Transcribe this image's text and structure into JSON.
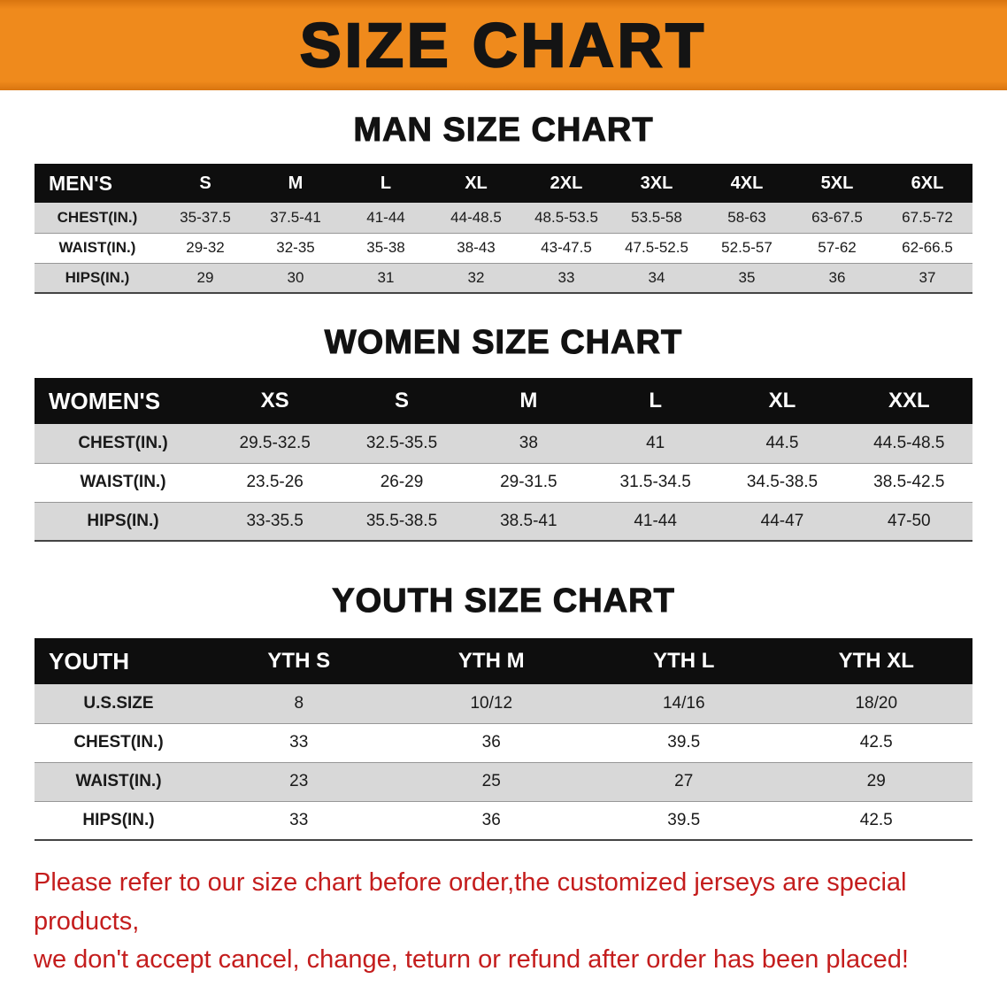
{
  "banner": {
    "title": "SIZE CHART",
    "bg_color": "#EF8A1C",
    "text_color": "#141414"
  },
  "sections": [
    {
      "title": "MAN SIZE CHART",
      "table": {
        "header": [
          "MEN'S",
          "S",
          "M",
          "L",
          "XL",
          "2XL",
          "3XL",
          "4XL",
          "5XL",
          "6XL"
        ],
        "rows": [
          [
            "CHEST(IN.)",
            "35-37.5",
            "37.5-41",
            "41-44",
            "44-48.5",
            "48.5-53.5",
            "53.5-58",
            "58-63",
            "63-67.5",
            "67.5-72"
          ],
          [
            "WAIST(IN.)",
            "29-32",
            "32-35",
            "35-38",
            "38-43",
            "43-47.5",
            "47.5-52.5",
            "52.5-57",
            "57-62",
            "62-66.5"
          ],
          [
            "HIPS(IN.)",
            "29",
            "30",
            "31",
            "32",
            "33",
            "34",
            "35",
            "36",
            "37"
          ]
        ]
      }
    },
    {
      "title": "WOMEN SIZE CHART",
      "table": {
        "header": [
          "WOMEN'S",
          "XS",
          "S",
          "M",
          "L",
          "XL",
          "XXL"
        ],
        "rows": [
          [
            "CHEST(IN.)",
            "29.5-32.5",
            "32.5-35.5",
            "38",
            "41",
            "44.5",
            "44.5-48.5"
          ],
          [
            "WAIST(IN.)",
            "23.5-26",
            "26-29",
            "29-31.5",
            "31.5-34.5",
            "34.5-38.5",
            "38.5-42.5"
          ],
          [
            "HIPS(IN.)",
            "33-35.5",
            "35.5-38.5",
            "38.5-41",
            "41-44",
            "44-47",
            "47-50"
          ]
        ]
      }
    },
    {
      "title": "YOUTH SIZE CHART",
      "table": {
        "header": [
          "YOUTH",
          "YTH S",
          "YTH M",
          "YTH L",
          "YTH XL"
        ],
        "rows": [
          [
            "U.S.SIZE",
            "8",
            "10/12",
            "14/16",
            "18/20"
          ],
          [
            "CHEST(IN.)",
            "33",
            "36",
            "39.5",
            "42.5"
          ],
          [
            "WAIST(IN.)",
            "23",
            "25",
            "27",
            "29"
          ],
          [
            "HIPS(IN.)",
            "33",
            "36",
            "39.5",
            "42.5"
          ]
        ]
      }
    }
  ],
  "footer": {
    "lines": [
      "Please refer to our size chart before order,the customized jerseys are special products,",
      "we don't accept cancel, change, teturn or refund after order has been placed!"
    ],
    "text_color": "#C41D1D"
  }
}
